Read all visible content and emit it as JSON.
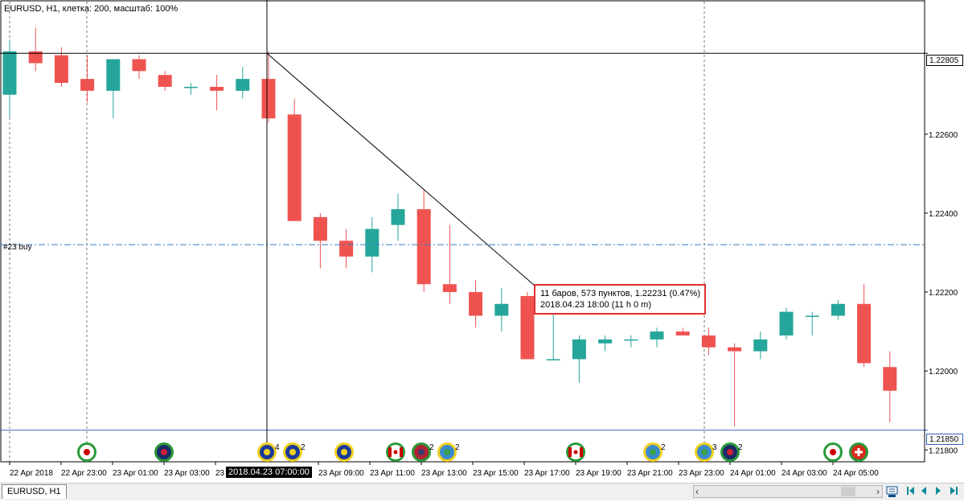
{
  "chart": {
    "title": "EURUSD, H1, клетка: 200, масштаб: 100%",
    "order_label": "#23 buy",
    "crosshair_time_label": "2018.04.23 07:00:00",
    "crosshair_price_label": "1.22805",
    "bid_price_label": "1.21850",
    "measure": {
      "line1": "11 баров, 573 пунктов, 1.22231 (0.47%)",
      "line2": "2018.04.23 18:00 (11 h 0 m)"
    },
    "tab_label": "EURUSD, H1",
    "colors": {
      "bull": "#26a69a",
      "bear": "#ef5350",
      "order_line": "#3080c8",
      "bid_line": "#4060c0",
      "measure_border": "#e03030"
    }
  },
  "chart_data": {
    "type": "candlestick",
    "symbol": "EURUSD",
    "timeframe": "H1",
    "ylim": [
      1.2177,
      1.2294
    ],
    "y_ticks": [
      "1.22600",
      "1.22400",
      "1.22200",
      "1.22000",
      "1.21800"
    ],
    "x_tick_labels": [
      "22 Apr 2018",
      "22 Apr 23:00",
      "23 Apr 01:00",
      "23 Apr 03:00",
      "23",
      "23 Apr 09:00",
      "23 Apr 11:00",
      "23 Apr 13:00",
      "23 Apr 15:00",
      "23 Apr 17:00",
      "23 Apr 19:00",
      "23 Apr 21:00",
      "23 Apr 23:00",
      "24 Apr 01:00",
      "24 Apr 03:00",
      "24 Apr 05:00"
    ],
    "order_level": 1.2232,
    "bid_level": 1.2185,
    "candles": [
      {
        "o": 1.227,
        "h": 1.2284,
        "l": 1.2264,
        "c": 1.2281
      },
      {
        "o": 1.2281,
        "h": 1.2287,
        "l": 1.2276,
        "c": 1.2278
      },
      {
        "o": 1.228,
        "h": 1.2282,
        "l": 1.2272,
        "c": 1.2273
      },
      {
        "o": 1.2274,
        "h": 1.228,
        "l": 1.2268,
        "c": 1.2271
      },
      {
        "o": 1.2271,
        "h": 1.2279,
        "l": 1.2264,
        "c": 1.2279
      },
      {
        "o": 1.2279,
        "h": 1.228,
        "l": 1.2274,
        "c": 1.2276
      },
      {
        "o": 1.2275,
        "h": 1.2276,
        "l": 1.2271,
        "c": 1.2272
      },
      {
        "o": 1.2272,
        "h": 1.2273,
        "l": 1.227,
        "c": 1.2272
      },
      {
        "o": 1.2272,
        "h": 1.2275,
        "l": 1.2266,
        "c": 1.2271
      },
      {
        "o": 1.2271,
        "h": 1.2277,
        "l": 1.2269,
        "c": 1.2274
      },
      {
        "o": 1.2274,
        "h": 1.2281,
        "l": 1.2263,
        "c": 1.2264
      },
      {
        "o": 1.2265,
        "h": 1.2269,
        "l": 1.2238,
        "c": 1.2238
      },
      {
        "o": 1.2239,
        "h": 1.224,
        "l": 1.2226,
        "c": 1.2233
      },
      {
        "o": 1.2233,
        "h": 1.2236,
        "l": 1.2226,
        "c": 1.2229
      },
      {
        "o": 1.2229,
        "h": 1.2239,
        "l": 1.2225,
        "c": 1.2236
      },
      {
        "o": 1.2237,
        "h": 1.2245,
        "l": 1.2233,
        "c": 1.2241
      },
      {
        "o": 1.2241,
        "h": 1.2246,
        "l": 1.222,
        "c": 1.2222
      },
      {
        "o": 1.2222,
        "h": 1.2237,
        "l": 1.2217,
        "c": 1.222
      },
      {
        "o": 1.222,
        "h": 1.2223,
        "l": 1.2211,
        "c": 1.2214
      },
      {
        "o": 1.2214,
        "h": 1.2221,
        "l": 1.221,
        "c": 1.2217
      },
      {
        "o": 1.2219,
        "h": 1.222,
        "l": 1.2203,
        "c": 1.2203
      },
      {
        "o": 1.2203,
        "h": 1.222,
        "l": 1.2203,
        "c": 1.2203
      },
      {
        "o": 1.2203,
        "h": 1.2209,
        "l": 1.2197,
        "c": 1.2208
      },
      {
        "o": 1.2207,
        "h": 1.2209,
        "l": 1.2205,
        "c": 1.2208
      },
      {
        "o": 1.2208,
        "h": 1.2209,
        "l": 1.2206,
        "c": 1.2208
      },
      {
        "o": 1.2208,
        "h": 1.2211,
        "l": 1.2206,
        "c": 1.221
      },
      {
        "o": 1.221,
        "h": 1.2211,
        "l": 1.2209,
        "c": 1.2209
      },
      {
        "o": 1.2209,
        "h": 1.2211,
        "l": 1.2204,
        "c": 1.2206
      },
      {
        "o": 1.2206,
        "h": 1.2207,
        "l": 1.2186,
        "c": 1.2205
      },
      {
        "o": 1.2205,
        "h": 1.221,
        "l": 1.2203,
        "c": 1.2208
      },
      {
        "o": 1.2209,
        "h": 1.2216,
        "l": 1.2208,
        "c": 1.2215
      },
      {
        "o": 1.2214,
        "h": 1.2215,
        "l": 1.2209,
        "c": 1.2214
      },
      {
        "o": 1.2214,
        "h": 1.2218,
        "l": 1.2213,
        "c": 1.2217
      },
      {
        "o": 1.2217,
        "h": 1.2222,
        "l": 1.2201,
        "c": 1.2202
      },
      {
        "o": 1.2201,
        "h": 1.2205,
        "l": 1.2187,
        "c": 1.2195
      }
    ],
    "calendar_events": [
      {
        "icon": "jp-flag-icon",
        "label": ""
      },
      {
        "icon": "nz-flag-icon",
        "label": ""
      },
      {
        "icon": "eu-flag-icon",
        "label": "4"
      },
      {
        "icon": "eu-flag-icon",
        "label": "2"
      },
      {
        "icon": "eu-flag-icon",
        "label": ""
      },
      {
        "icon": "ca-flag-icon",
        "label": ""
      },
      {
        "icon": "us-flag-icon",
        "label": "2"
      },
      {
        "icon": "globe-icon",
        "label": "2"
      },
      {
        "icon": "ca-flag-icon",
        "label": ""
      },
      {
        "icon": "globe-icon",
        "label": "2"
      },
      {
        "icon": "globe-icon",
        "label": "3"
      },
      {
        "icon": "au-flag-icon",
        "label": "2"
      },
      {
        "icon": "jp-flag-icon",
        "label": ""
      },
      {
        "icon": "ch-flag-icon",
        "label": ""
      }
    ]
  }
}
